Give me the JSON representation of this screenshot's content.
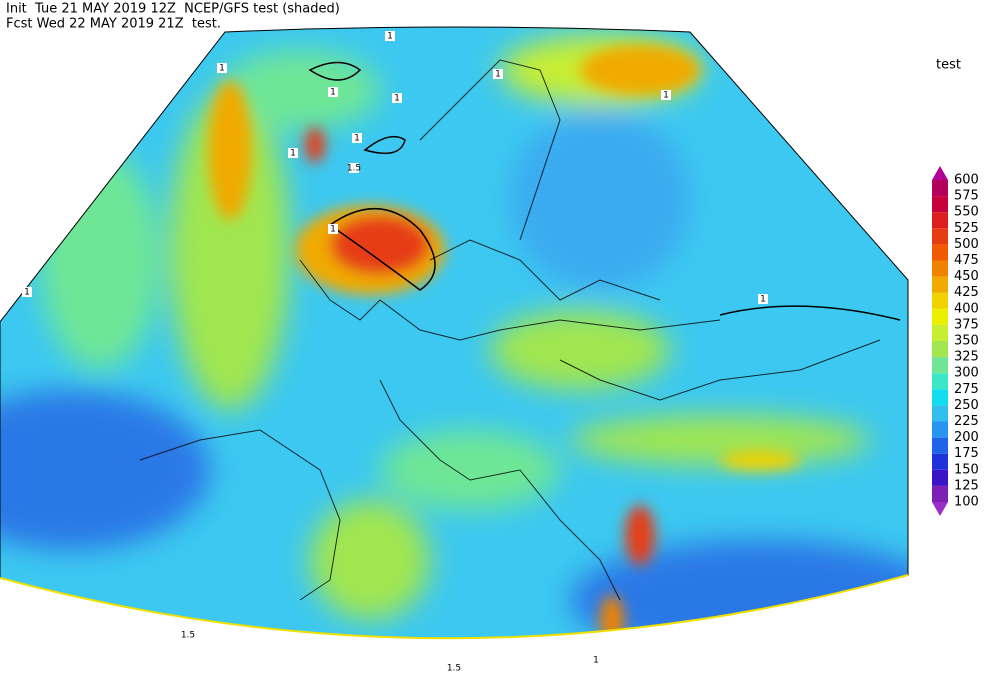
{
  "header": {
    "line1": "Init  Tue 21 MAY 2019 12Z  NCEP/GFS test (shaded)",
    "line2": "Fcst Wed 22 MAY 2019 21Z  test."
  },
  "legend": {
    "title": "test",
    "levels": [
      100,
      125,
      150,
      175,
      200,
      225,
      250,
      275,
      300,
      325,
      350,
      375,
      400,
      425,
      450,
      475,
      500,
      525,
      550,
      575,
      600
    ],
    "colors": [
      "#9a2fc8",
      "#7d20b4",
      "#3c14c8",
      "#1e32dc",
      "#1e64e6",
      "#2896f0",
      "#32beef",
      "#14dcf0",
      "#3ce6c8",
      "#6ee696",
      "#a0e650",
      "#c8ee32",
      "#ecf000",
      "#f0d200",
      "#f0aa00",
      "#f08200",
      "#f05a00",
      "#e63c14",
      "#dc1e1e",
      "#c8003c",
      "#b4005a",
      "#b40096"
    ]
  },
  "contour_labels": [
    "1",
    "1",
    "1",
    "1",
    "1",
    "1",
    "1",
    "1",
    "1.5",
    "1",
    "1",
    "1",
    "1.5",
    "1.5",
    "1"
  ]
}
